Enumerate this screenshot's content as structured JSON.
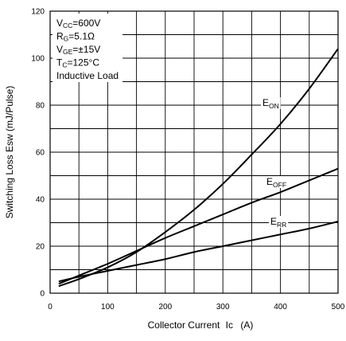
{
  "chart_data": {
    "type": "line",
    "xlabel": "Collector Current",
    "xlabel_sym": "Ic",
    "xlabel_unit": "(A)",
    "ylabel": "Switching Loss Esw (mJ/Pulse)",
    "xlim": [
      0,
      500
    ],
    "ylim": [
      0,
      120
    ],
    "x_ticks": [
      "0",
      "100",
      "200",
      "300",
      "400",
      "500"
    ],
    "y_ticks": [
      "0",
      "20",
      "40",
      "60",
      "80",
      "100",
      "120"
    ],
    "grid": true,
    "conditions": [
      {
        "main": "V",
        "sub": "CC",
        "rest": "=600V"
      },
      {
        "main": "R",
        "sub": "G",
        "rest": "=5.1Ω"
      },
      {
        "main": "V",
        "sub": "GE",
        "rest": "=±15V"
      },
      {
        "main": "T",
        "sub": "C",
        "rest": "=125°C"
      },
      {
        "main": "Inductive Load",
        "sub": "",
        "rest": ""
      }
    ],
    "series": [
      {
        "name": "EON",
        "label_main": "E",
        "label_sub": "ON",
        "x": [
          15,
          50,
          100,
          150,
          200,
          250,
          300,
          350,
          400,
          450,
          500
        ],
        "values": [
          3,
          6,
          11,
          17.5,
          26,
          35.5,
          46.5,
          59,
          72,
          87,
          104
        ]
      },
      {
        "name": "EOFF",
        "label_main": "E",
        "label_sub": "OFF",
        "x": [
          15,
          50,
          100,
          150,
          200,
          250,
          300,
          350,
          400,
          450,
          500
        ],
        "values": [
          4,
          7.5,
          12.5,
          18,
          23.5,
          28.5,
          33.5,
          38.5,
          43,
          48,
          53
        ]
      },
      {
        "name": "ERR",
        "label_main": "E",
        "label_sub": "RR",
        "x": [
          15,
          50,
          100,
          150,
          200,
          250,
          300,
          350,
          400,
          450,
          500
        ],
        "values": [
          5,
          7,
          9.5,
          12,
          14.5,
          17.5,
          20,
          22.5,
          25,
          27.5,
          30.5
        ]
      }
    ]
  }
}
